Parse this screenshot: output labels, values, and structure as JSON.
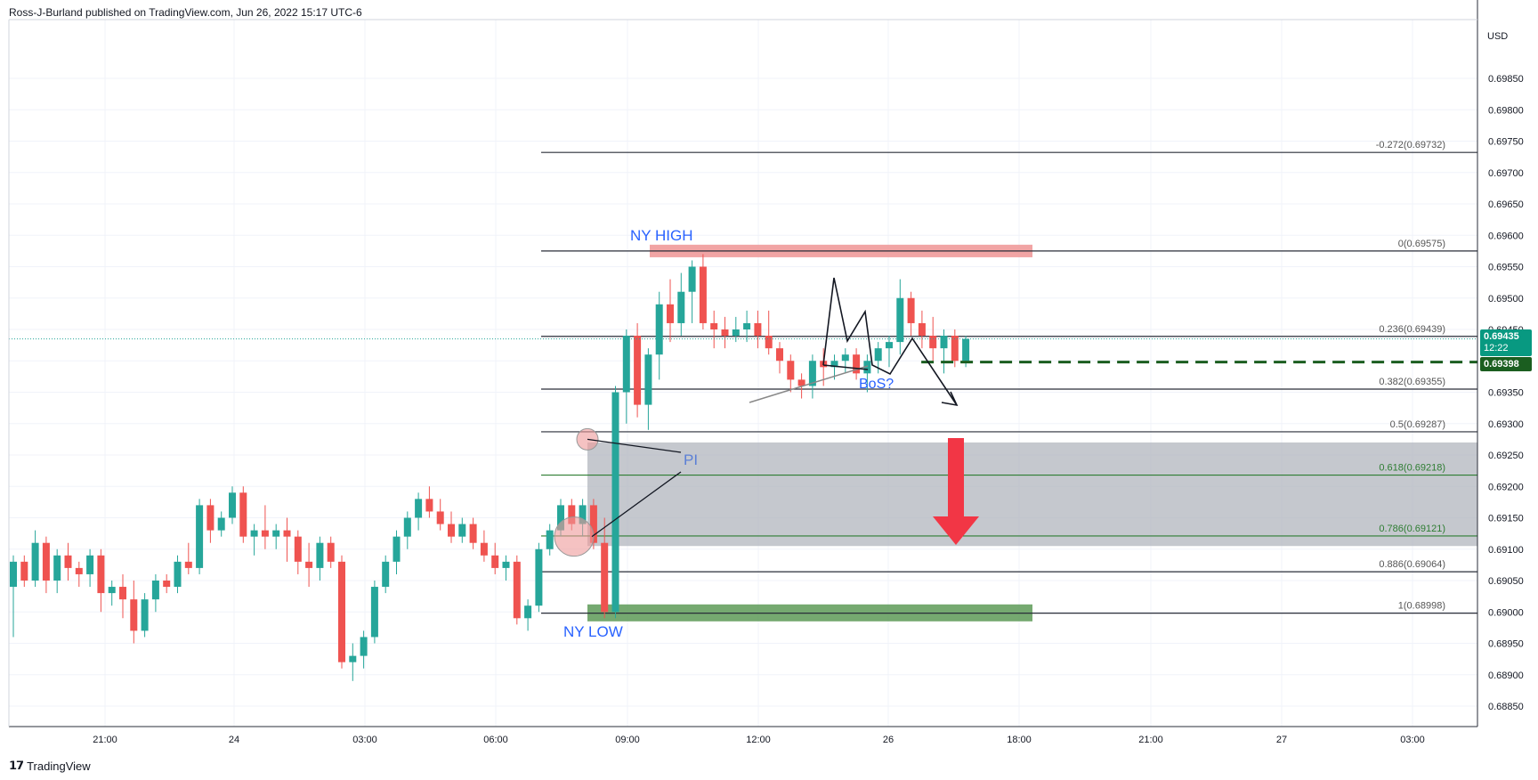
{
  "header": {
    "publisher_line": "Ross-J-Burland published on TradingView.com, Jun 26, 2022 15:17 UTC-6"
  },
  "footer": {
    "logo_text": "TradingView"
  },
  "price_scale": {
    "currency": "USD",
    "labels": [
      "0.69850",
      "0.69800",
      "0.69750",
      "0.69700",
      "0.69650",
      "0.69600",
      "0.69550",
      "0.69500",
      "0.69450",
      "0.69350",
      "0.69300",
      "0.69250",
      "0.69200",
      "0.69150",
      "0.69100",
      "0.69050",
      "0.69000",
      "0.68950",
      "0.68900",
      "0.68850"
    ],
    "current_price": "0.69435",
    "countdown": "12:22",
    "dashed_level": "0.69398"
  },
  "time_axis": {
    "labels": [
      "21:00",
      "24",
      "03:00",
      "06:00",
      "09:00",
      "12:00",
      "26",
      "18:00",
      "21:00",
      "27",
      "03:00"
    ]
  },
  "annotations": {
    "ny_high": "NY HIGH",
    "ny_low": "NY LOW",
    "pi": "PI",
    "bos": "BoS?"
  },
  "fib_levels": [
    {
      "label": "-0.272(0.69732)",
      "price": 0.69732
    },
    {
      "label": "0(0.69575)",
      "price": 0.69575
    },
    {
      "label": "0.236(0.69439)",
      "price": 0.69439
    },
    {
      "label": "0.382(0.69355)",
      "price": 0.69355
    },
    {
      "label": "0.5(0.69287)",
      "price": 0.69287
    },
    {
      "label": "0.618(0.69218)",
      "price": 0.69218
    },
    {
      "label": "0.786(0.69121)",
      "price": 0.69121
    },
    {
      "label": "0.886(0.69064)",
      "price": 0.69064
    },
    {
      "label": "1(0.68998)",
      "price": 0.68998
    }
  ],
  "colors": {
    "up": "#26a69a",
    "down": "#ef5350",
    "fib_green": "#2e7d32",
    "zone_gray": "#b2b5be",
    "zone_red": "#ef9a9a",
    "zone_green": "#66a060",
    "arrow_red": "#f23645",
    "ann_blue": "#2962ff"
  },
  "chart_data": {
    "type": "candlestick",
    "symbol_currency": "USD",
    "y_range": [
      0.6884,
      0.6991
    ],
    "x_labels": [
      "21:00",
      "24",
      "03:00",
      "06:00",
      "09:00",
      "12:00",
      "26",
      "18:00",
      "21:00",
      "27",
      "03:00"
    ],
    "candles_ohlc": [
      [
        0.6904,
        0.6909,
        0.6896,
        0.6908
      ],
      [
        0.6908,
        0.6909,
        0.6904,
        0.6905
      ],
      [
        0.6905,
        0.6913,
        0.6904,
        0.6911
      ],
      [
        0.6911,
        0.6912,
        0.6903,
        0.6905
      ],
      [
        0.6905,
        0.691,
        0.6903,
        0.6909
      ],
      [
        0.6909,
        0.6911,
        0.6905,
        0.6907
      ],
      [
        0.6907,
        0.6908,
        0.6904,
        0.6906
      ],
      [
        0.6906,
        0.691,
        0.6904,
        0.6909
      ],
      [
        0.6909,
        0.691,
        0.69,
        0.6903
      ],
      [
        0.6903,
        0.6905,
        0.6901,
        0.6904
      ],
      [
        0.6904,
        0.6906,
        0.6899,
        0.6902
      ],
      [
        0.6902,
        0.6905,
        0.6895,
        0.6897
      ],
      [
        0.6897,
        0.6903,
        0.6896,
        0.6902
      ],
      [
        0.6902,
        0.6906,
        0.69,
        0.6905
      ],
      [
        0.6905,
        0.6906,
        0.6903,
        0.6904
      ],
      [
        0.6904,
        0.6909,
        0.6903,
        0.6908
      ],
      [
        0.6908,
        0.6911,
        0.6906,
        0.6907
      ],
      [
        0.6907,
        0.6918,
        0.6906,
        0.6917
      ],
      [
        0.6917,
        0.6918,
        0.6911,
        0.6913
      ],
      [
        0.6913,
        0.6916,
        0.6912,
        0.6915
      ],
      [
        0.6915,
        0.692,
        0.6914,
        0.6919
      ],
      [
        0.6919,
        0.692,
        0.6911,
        0.6912
      ],
      [
        0.6912,
        0.6914,
        0.6909,
        0.6913
      ],
      [
        0.6913,
        0.6917,
        0.691,
        0.6912
      ],
      [
        0.6912,
        0.6914,
        0.691,
        0.6913
      ],
      [
        0.6913,
        0.6915,
        0.6908,
        0.6912
      ],
      [
        0.6912,
        0.6913,
        0.6906,
        0.6908
      ],
      [
        0.6908,
        0.6911,
        0.6904,
        0.6907
      ],
      [
        0.6907,
        0.6912,
        0.6905,
        0.6911
      ],
      [
        0.6911,
        0.6912,
        0.6907,
        0.6908
      ],
      [
        0.6908,
        0.6909,
        0.6891,
        0.6892
      ],
      [
        0.6892,
        0.6895,
        0.6889,
        0.6893
      ],
      [
        0.6893,
        0.6897,
        0.6891,
        0.6896
      ],
      [
        0.6896,
        0.6905,
        0.6895,
        0.6904
      ],
      [
        0.6904,
        0.6909,
        0.6903,
        0.6908
      ],
      [
        0.6908,
        0.6913,
        0.6906,
        0.6912
      ],
      [
        0.6912,
        0.6916,
        0.691,
        0.6915
      ],
      [
        0.6915,
        0.6919,
        0.6913,
        0.6918
      ],
      [
        0.6918,
        0.692,
        0.6915,
        0.6916
      ],
      [
        0.6916,
        0.6918,
        0.6913,
        0.6914
      ],
      [
        0.6914,
        0.6916,
        0.6911,
        0.6912
      ],
      [
        0.6912,
        0.6915,
        0.6911,
        0.6914
      ],
      [
        0.6914,
        0.6915,
        0.691,
        0.6911
      ],
      [
        0.6911,
        0.6913,
        0.6908,
        0.6909
      ],
      [
        0.6909,
        0.6911,
        0.6906,
        0.6907
      ],
      [
        0.6907,
        0.6909,
        0.6905,
        0.6908
      ],
      [
        0.6908,
        0.6909,
        0.6898,
        0.6899
      ],
      [
        0.6899,
        0.6902,
        0.6897,
        0.6901
      ],
      [
        0.6901,
        0.6911,
        0.69,
        0.691
      ],
      [
        0.691,
        0.6914,
        0.6909,
        0.6913
      ],
      [
        0.6913,
        0.6918,
        0.6912,
        0.6917
      ],
      [
        0.6917,
        0.6918,
        0.6913,
        0.6914
      ],
      [
        0.6914,
        0.6918,
        0.6912,
        0.6917
      ],
      [
        0.6917,
        0.6918,
        0.691,
        0.6911
      ],
      [
        0.6911,
        0.6915,
        0.6899,
        0.69
      ],
      [
        0.69,
        0.6936,
        0.6899,
        0.6935
      ],
      [
        0.6935,
        0.6945,
        0.693,
        0.6944
      ],
      [
        0.6944,
        0.6946,
        0.6931,
        0.6933
      ],
      [
        0.6933,
        0.6942,
        0.6929,
        0.6941
      ],
      [
        0.6941,
        0.6951,
        0.6937,
        0.6949
      ],
      [
        0.6949,
        0.6953,
        0.6943,
        0.6946
      ],
      [
        0.6946,
        0.6954,
        0.6944,
        0.6951
      ],
      [
        0.6951,
        0.6956,
        0.6946,
        0.6955
      ],
      [
        0.6955,
        0.6957,
        0.6945,
        0.6946
      ],
      [
        0.6946,
        0.6948,
        0.6942,
        0.6945
      ],
      [
        0.6945,
        0.6947,
        0.6942,
        0.6944
      ],
      [
        0.6944,
        0.6947,
        0.6943,
        0.6945
      ],
      [
        0.6945,
        0.6948,
        0.6943,
        0.6946
      ],
      [
        0.6946,
        0.6948,
        0.6942,
        0.6944
      ],
      [
        0.6944,
        0.6948,
        0.6941,
        0.6942
      ],
      [
        0.6942,
        0.6943,
        0.6938,
        0.694
      ],
      [
        0.694,
        0.6941,
        0.6935,
        0.6937
      ],
      [
        0.6937,
        0.6938,
        0.6934,
        0.6936
      ],
      [
        0.6936,
        0.6941,
        0.6934,
        0.694
      ],
      [
        0.694,
        0.6942,
        0.6936,
        0.6939
      ],
      [
        0.6939,
        0.6941,
        0.6937,
        0.694
      ],
      [
        0.694,
        0.6942,
        0.6938,
        0.6941
      ],
      [
        0.6941,
        0.6942,
        0.6937,
        0.6938
      ],
      [
        0.6938,
        0.6941,
        0.6935,
        0.694
      ],
      [
        0.694,
        0.6943,
        0.6938,
        0.6942
      ],
      [
        0.6942,
        0.6944,
        0.6939,
        0.6943
      ],
      [
        0.6943,
        0.6953,
        0.6941,
        0.695
      ],
      [
        0.695,
        0.6951,
        0.6944,
        0.6946
      ],
      [
        0.6946,
        0.6948,
        0.6942,
        0.6944
      ],
      [
        0.6944,
        0.6947,
        0.694,
        0.6942
      ],
      [
        0.6942,
        0.6945,
        0.6938,
        0.6944
      ],
      [
        0.6944,
        0.6945,
        0.6939,
        0.694
      ],
      [
        0.694,
        0.6944,
        0.6939,
        0.69435
      ]
    ],
    "fib_retracement": {
      "-0.272": 0.69732,
      "0": 0.69575,
      "0.236": 0.69439,
      "0.382": 0.69355,
      "0.5": 0.69287,
      "0.618": 0.69218,
      "0.786": 0.69121,
      "0.886": 0.69064,
      "1": 0.68998
    },
    "zones": [
      {
        "name": "NY HIGH",
        "from": 0.69585,
        "to": 0.69565
      },
      {
        "name": "gray demand zone",
        "from": 0.6927,
        "to": 0.69105
      },
      {
        "name": "NY LOW",
        "from": 0.69012,
        "to": 0.68985
      }
    ],
    "last_price": 0.69435,
    "dashed_line_price": 0.69398
  }
}
